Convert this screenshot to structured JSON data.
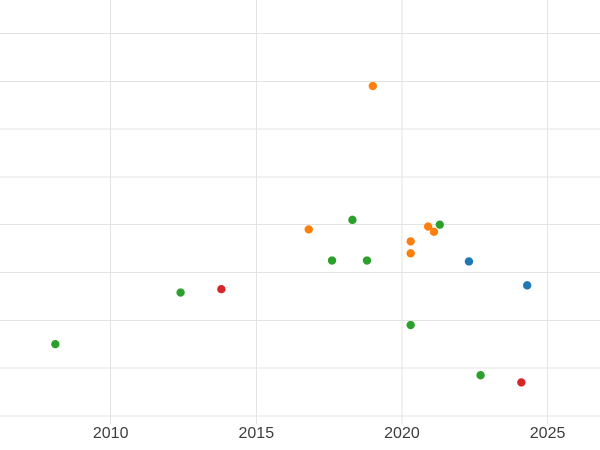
{
  "chart_data": {
    "type": "scatter",
    "title": "",
    "xlabel": "",
    "ylabel": "",
    "grid": true,
    "legend": "none",
    "background_color": "#ffffff",
    "gridline_color": "#e3e3e3",
    "tick_label_color": "#3d3d3d",
    "x_ticks": [
      2010,
      2015,
      2020,
      2025
    ],
    "y_ticks_labeled": false,
    "y_gridline_values": [
      0,
      1,
      2,
      3,
      4,
      5,
      6,
      7,
      8
    ],
    "xlim": [
      2006.2,
      2026.8
    ],
    "ylim": [
      -0.17,
      8.7
    ],
    "marker_radius": 4.2,
    "series": [
      {
        "name": "green-series",
        "color": "#2ca02c",
        "points": [
          [
            2008.1,
            1.5
          ],
          [
            2012.4,
            2.58
          ],
          [
            2017.6,
            3.25
          ],
          [
            2018.3,
            4.1
          ],
          [
            2018.8,
            3.25
          ],
          [
            2020.3,
            1.9
          ],
          [
            2021.3,
            4.0
          ],
          [
            2022.7,
            0.85
          ]
        ]
      },
      {
        "name": "orange-series",
        "color": "#ff7f0e",
        "points": [
          [
            2016.8,
            3.9
          ],
          [
            2019.0,
            6.9
          ],
          [
            2020.3,
            3.4
          ],
          [
            2020.3,
            3.65
          ],
          [
            2020.9,
            3.96
          ],
          [
            2021.1,
            3.85
          ]
        ]
      },
      {
        "name": "red-series",
        "color": "#d62728",
        "points": [
          [
            2013.8,
            2.65
          ],
          [
            2024.1,
            0.7
          ]
        ]
      },
      {
        "name": "blue-series",
        "color": "#1f77b4",
        "points": [
          [
            2022.3,
            3.23
          ],
          [
            2024.3,
            2.73
          ]
        ]
      }
    ]
  }
}
